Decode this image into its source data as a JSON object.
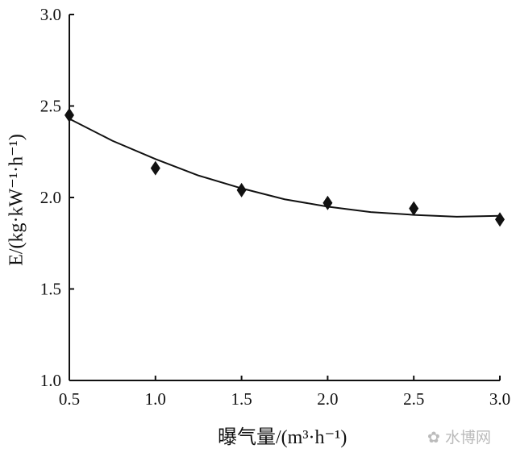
{
  "chart_data": {
    "type": "scatter",
    "xlabel": "曝气量/(m³·h⁻¹)",
    "ylabel": "E/(kg·kW⁻¹·h⁻¹)",
    "xlim": [
      0.5,
      3.0
    ],
    "ylim": [
      1.0,
      3.0
    ],
    "xticks": [
      "0.5",
      "1.0",
      "1.5",
      "2.0",
      "2.5",
      "3.0"
    ],
    "yticks": [
      "1.0",
      "1.5",
      "2.0",
      "2.5",
      "3.0"
    ],
    "grid": false,
    "series": [
      {
        "kind": "points",
        "marker": "diamond",
        "x": [
          0.5,
          1.0,
          1.5,
          2.0,
          2.5,
          3.0
        ],
        "y": [
          2.45,
          2.16,
          2.04,
          1.97,
          1.94,
          1.88
        ]
      },
      {
        "kind": "fit-line",
        "x": [
          0.5,
          0.75,
          1.0,
          1.25,
          1.5,
          1.75,
          2.0,
          2.25,
          2.5,
          2.75,
          3.0
        ],
        "y": [
          2.43,
          2.31,
          2.21,
          2.12,
          2.05,
          1.99,
          1.95,
          1.92,
          1.905,
          1.895,
          1.9
        ]
      }
    ],
    "color": "#111111"
  },
  "watermark": "水博网"
}
